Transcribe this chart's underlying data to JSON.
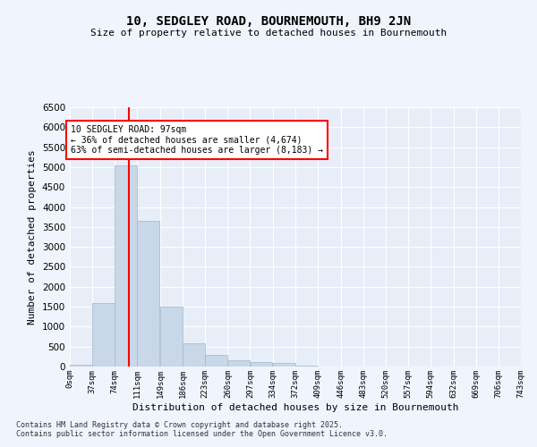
{
  "title": "10, SEDGLEY ROAD, BOURNEMOUTH, BH9 2JN",
  "subtitle": "Size of property relative to detached houses in Bournemouth",
  "xlabel": "Distribution of detached houses by size in Bournemouth",
  "ylabel": "Number of detached properties",
  "bar_color": "#c8d8e8",
  "bar_edge_color": "#a0b8cc",
  "background_color": "#e8eef8",
  "grid_color": "#ffffff",
  "vline_x": 97,
  "vline_color": "red",
  "annotation_line1": "10 SEDGLEY ROAD: 97sqm",
  "annotation_line2": "← 36% of detached houses are smaller (4,674)",
  "annotation_line3": "63% of semi-detached houses are larger (8,183) →",
  "annotation_box_color": "white",
  "annotation_box_edge": "red",
  "categories": [
    "0sqm",
    "37sqm",
    "74sqm",
    "111sqm",
    "149sqm",
    "186sqm",
    "223sqm",
    "260sqm",
    "297sqm",
    "334sqm",
    "372sqm",
    "409sqm",
    "446sqm",
    "483sqm",
    "520sqm",
    "557sqm",
    "594sqm",
    "632sqm",
    "669sqm",
    "706sqm",
    "743sqm"
  ],
  "bin_edges": [
    0,
    37,
    74,
    111,
    149,
    186,
    223,
    260,
    297,
    334,
    372,
    409,
    446,
    483,
    520,
    557,
    594,
    632,
    669,
    706,
    743
  ],
  "values": [
    50,
    1600,
    5050,
    3650,
    1500,
    580,
    300,
    160,
    110,
    80,
    30,
    10,
    5,
    2,
    0,
    0,
    0,
    0,
    0,
    0
  ],
  "ylim": [
    0,
    6500
  ],
  "yticks": [
    0,
    500,
    1000,
    1500,
    2000,
    2500,
    3000,
    3500,
    4000,
    4500,
    5000,
    5500,
    6000,
    6500
  ],
  "footnote1": "Contains HM Land Registry data © Crown copyright and database right 2025.",
  "footnote2": "Contains public sector information licensed under the Open Government Licence v3.0.",
  "fig_bg": "#f0f4fc"
}
